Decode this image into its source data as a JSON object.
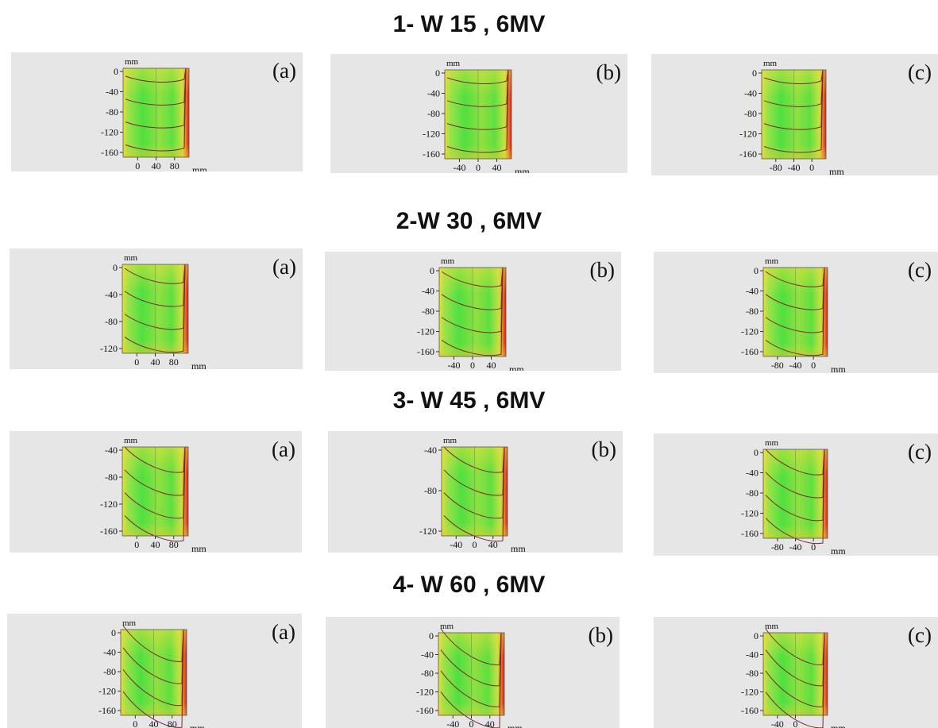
{
  "sections": [
    {
      "title": "1- W 15 , 6MV",
      "panels": [
        {
          "label": "(a)",
          "y_unit": "mm",
          "x_unit": "mm",
          "y_ticks": [
            "0",
            "-40",
            "-80",
            "-120",
            "-160"
          ],
          "x_ticks": [
            "0",
            "40",
            "80"
          ]
        },
        {
          "label": "(b)",
          "y_unit": "mm",
          "x_unit": "mm",
          "y_ticks": [
            "0",
            "-40",
            "-80",
            "-120",
            "-160"
          ],
          "x_ticks": [
            "-40",
            "0",
            "40"
          ]
        },
        {
          "label": "(c)",
          "y_unit": "mm",
          "x_unit": "mm",
          "y_ticks": [
            "0",
            "-40",
            "-80",
            "-120",
            "-160"
          ],
          "x_ticks": [
            "-80",
            "-40",
            "0"
          ]
        }
      ]
    },
    {
      "title": "2-W 30 , 6MV",
      "panels": [
        {
          "label": "(a)",
          "y_unit": "mm",
          "x_unit": "mm",
          "y_ticks": [
            "0",
            "-40",
            "-80",
            "-120"
          ],
          "x_ticks": [
            "0",
            "40",
            "80"
          ]
        },
        {
          "label": "(b)",
          "y_unit": "mm",
          "x_unit": "mm",
          "y_ticks": [
            "0",
            "-40",
            "-80",
            "-120",
            "-160"
          ],
          "x_ticks": [
            "-40",
            "0",
            "40"
          ]
        },
        {
          "label": "(c)",
          "y_unit": "mm",
          "x_unit": "mm",
          "y_ticks": [
            "0",
            "-40",
            "-80",
            "-120",
            "-160"
          ],
          "x_ticks": [
            "-80",
            "-40",
            "0"
          ]
        }
      ]
    },
    {
      "title": "3- W 45 , 6MV",
      "panels": [
        {
          "label": "(a)",
          "y_unit": "mm",
          "x_unit": "mm",
          "y_ticks": [
            "-40",
            "-80",
            "-120",
            "-160"
          ],
          "x_ticks": [
            "0",
            "40",
            "80"
          ]
        },
        {
          "label": "(b)",
          "y_unit": "mm",
          "x_unit": "mm",
          "y_ticks": [
            "-40",
            "-80",
            "-120"
          ],
          "x_ticks": [
            "-40",
            "0",
            "40"
          ]
        },
        {
          "label": "(c)",
          "y_unit": "mm",
          "x_unit": "mm",
          "y_ticks": [
            "0",
            "-40",
            "-80",
            "-120",
            "-160"
          ],
          "x_ticks": [
            "-80",
            "-40",
            "0"
          ]
        }
      ]
    },
    {
      "title": "4- W 60 , 6MV",
      "panels": [
        {
          "label": "(a)",
          "y_unit": "mm",
          "x_unit": "mm",
          "y_ticks": [
            "0",
            "-40",
            "-80",
            "-120",
            "-160"
          ],
          "x_ticks": [
            "0",
            "40",
            "80"
          ]
        },
        {
          "label": "(b)",
          "y_unit": "mm",
          "x_unit": "mm",
          "y_ticks": [
            "0",
            "-40",
            "-80",
            "-120",
            "-160"
          ],
          "x_ticks": [
            "-40",
            "0",
            "40"
          ]
        },
        {
          "label": "(c)",
          "y_unit": "mm",
          "x_unit": "mm",
          "y_ticks": [
            "0",
            "-40",
            "-80",
            "-120",
            "-160"
          ],
          "x_ticks": [
            "-40",
            "0"
          ]
        }
      ]
    }
  ]
}
